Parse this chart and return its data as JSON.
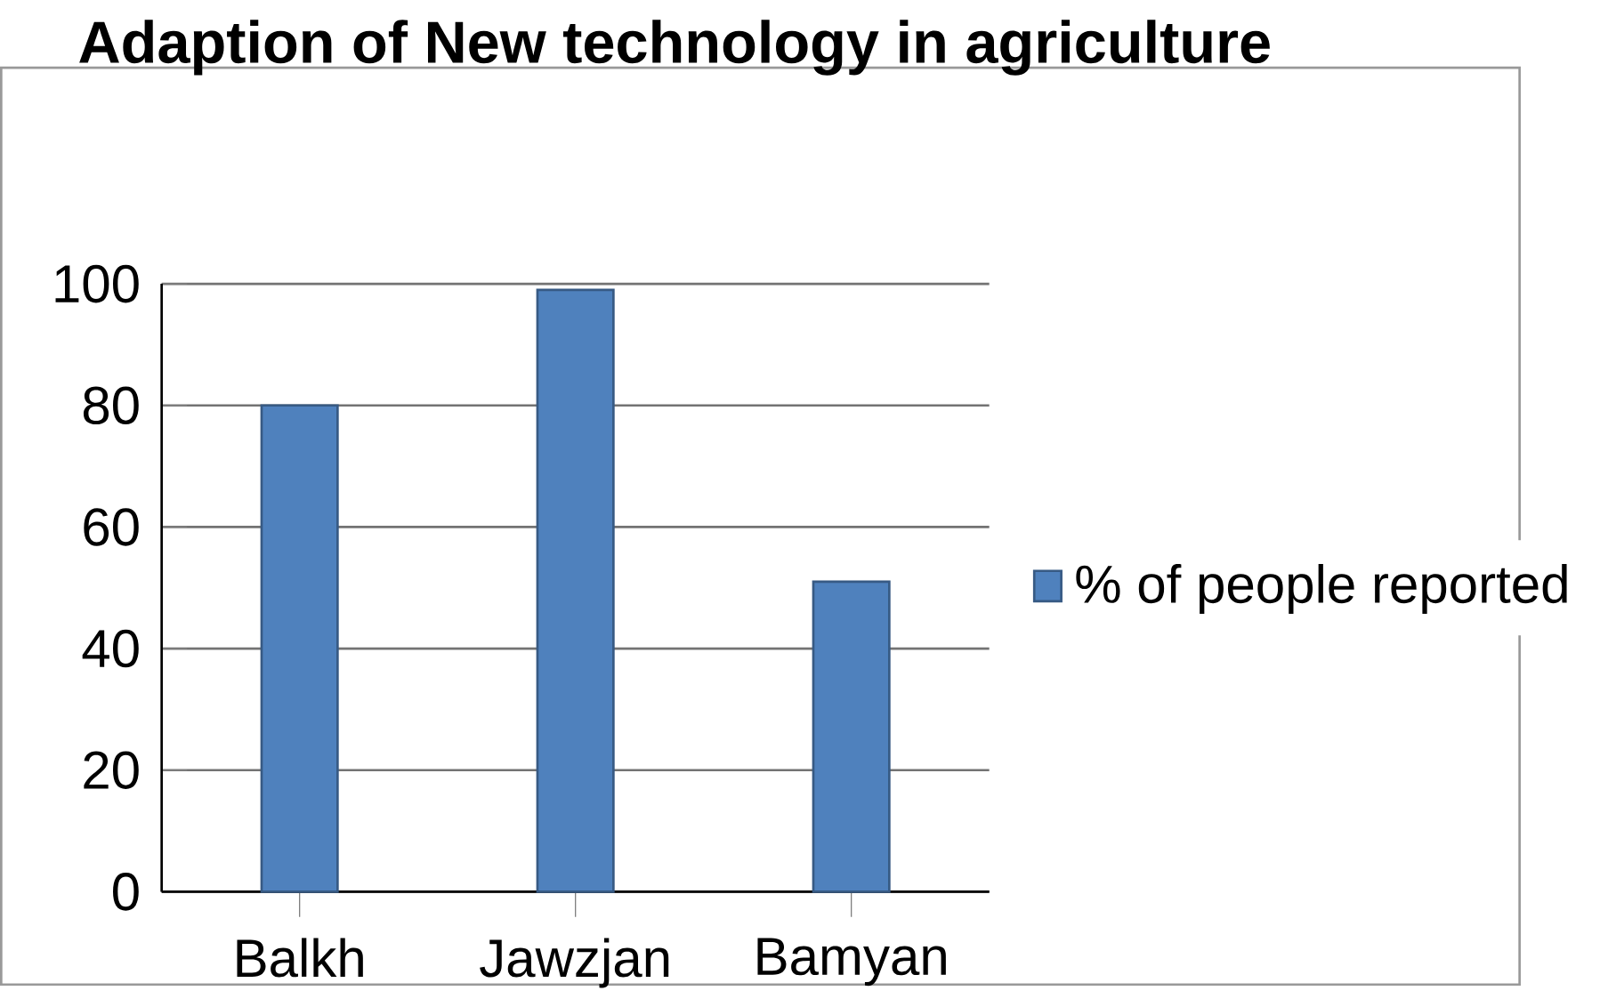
{
  "chart_data": {
    "type": "bar",
    "title": "Adaption of New technology in agriculture",
    "categories": [
      "Balkh",
      "Jawzjan",
      "Bamyan"
    ],
    "series": [
      {
        "name": "% of people reported",
        "color": "#4f81bd",
        "values": [
          80,
          99,
          51
        ]
      }
    ],
    "ylim": [
      0,
      100
    ],
    "yticks": [
      0,
      20,
      40,
      60,
      80,
      100
    ],
    "grid": "y",
    "legend": "right"
  }
}
